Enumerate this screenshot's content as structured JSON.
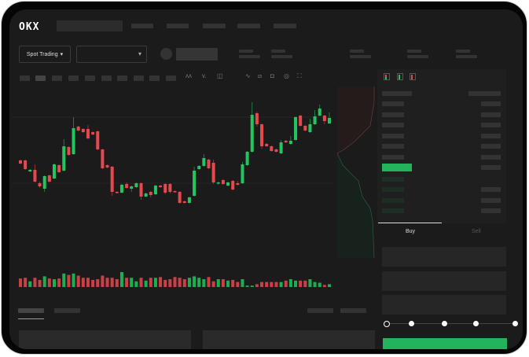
{
  "header": {
    "logo": "OKX"
  },
  "market": {
    "mode_label": "Spot Trading",
    "chevron": "▾"
  },
  "order_form": {
    "tabs": [
      {
        "label": "Buy",
        "active": true
      },
      {
        "label": "Sell",
        "active": false
      }
    ],
    "slider_level": 0,
    "slider_steps": 5
  },
  "toolbar": {
    "icons": [
      "indicator-icon",
      "compare-icon",
      "settings-icon",
      "line-tool-icon",
      "ruler-icon",
      "camera-icon",
      "target-icon",
      "fullscreen-icon"
    ]
  },
  "orderbook": {
    "view_icons": [
      "both-sides-icon",
      "bids-only-icon",
      "asks-only-icon"
    ]
  },
  "colors": {
    "up": "#22c55e",
    "down": "#e5484d",
    "accent": "#23b35d",
    "background": "#1b1b1b"
  },
  "chart_data": {
    "type": "candlestick",
    "candles": [
      [
        97,
        98,
        92,
        93
      ],
      [
        97,
        98,
        85,
        86
      ],
      [
        83,
        86,
        82,
        85
      ],
      [
        85,
        92,
        69,
        70
      ],
      [
        68,
        70,
        62,
        64
      ],
      [
        61,
        78,
        57,
        77
      ],
      [
        78,
        79,
        69,
        70
      ],
      [
        74,
        93,
        73,
        92
      ],
      [
        91,
        92,
        81,
        82
      ],
      [
        84,
        124,
        83,
        115
      ],
      [
        114,
        115,
        103,
        104
      ],
      [
        105,
        152,
        104,
        138
      ],
      [
        140,
        141,
        134,
        135
      ],
      [
        137,
        138,
        132,
        133
      ],
      [
        137,
        142,
        124,
        125
      ],
      [
        133,
        134,
        129,
        130
      ],
      [
        134,
        135,
        110,
        111
      ],
      [
        111,
        112,
        86,
        87
      ],
      [
        91,
        92,
        87,
        88
      ],
      [
        89,
        90,
        52,
        57
      ],
      [
        57,
        58,
        55,
        56
      ],
      [
        56,
        67,
        55,
        66
      ],
      [
        67,
        69,
        61,
        62
      ],
      [
        61,
        65,
        57,
        64
      ],
      [
        63,
        69,
        62,
        68
      ],
      [
        68,
        69,
        47,
        51
      ],
      [
        51,
        56,
        50,
        55
      ],
      [
        57,
        58,
        50,
        53
      ],
      [
        54,
        66,
        53,
        65
      ],
      [
        65,
        66,
        62,
        63
      ],
      [
        67,
        68,
        54,
        56
      ],
      [
        67,
        68,
        55,
        57
      ],
      [
        58,
        59,
        56,
        57
      ],
      [
        57,
        58,
        42,
        43
      ],
      [
        45,
        46,
        42,
        43
      ],
      [
        43,
        51,
        42,
        50
      ],
      [
        52,
        89,
        51,
        84
      ],
      [
        86,
        91,
        85,
        90
      ],
      [
        90,
        105,
        89,
        100
      ],
      [
        98,
        99,
        86,
        87
      ],
      [
        94,
        98,
        67,
        69
      ],
      [
        68,
        70,
        66,
        69
      ],
      [
        72,
        73,
        66,
        67
      ],
      [
        65,
        70,
        64,
        69
      ],
      [
        71,
        72,
        59,
        60
      ],
      [
        68,
        71,
        65,
        66
      ],
      [
        68,
        95,
        67,
        92
      ],
      [
        91,
        109,
        90,
        108
      ],
      [
        108,
        171,
        107,
        155
      ],
      [
        157,
        159,
        140,
        143
      ],
      [
        143,
        144,
        112,
        115
      ],
      [
        118,
        119,
        114,
        115
      ],
      [
        115,
        116,
        108,
        109
      ],
      [
        111,
        112,
        107,
        108
      ],
      [
        106,
        123,
        105,
        120
      ],
      [
        122,
        123,
        119,
        120
      ],
      [
        118,
        128,
        117,
        122
      ],
      [
        123,
        153,
        122,
        152
      ],
      [
        154,
        155,
        140,
        141
      ],
      [
        141,
        142,
        134,
        135
      ],
      [
        133,
        150,
        132,
        143
      ],
      [
        143,
        161,
        142,
        153
      ],
      [
        154,
        168,
        153,
        163
      ],
      [
        154,
        155,
        143,
        147
      ],
      [
        144,
        158,
        143,
        151
      ]
    ],
    "volumes": [
      12,
      13,
      8,
      13,
      10,
      15,
      12,
      11,
      12,
      19,
      17,
      19,
      16,
      13,
      13,
      10,
      11,
      16,
      13,
      13,
      11,
      21,
      13,
      13,
      8,
      13,
      9,
      13,
      13,
      14,
      10,
      11,
      14,
      13,
      11,
      13,
      15,
      13,
      11,
      14,
      8,
      11,
      11,
      9,
      10,
      7,
      11,
      2,
      2,
      4,
      7,
      7,
      7,
      7,
      7,
      9,
      11,
      9,
      9,
      9,
      11,
      7,
      6,
      3,
      4
    ]
  }
}
